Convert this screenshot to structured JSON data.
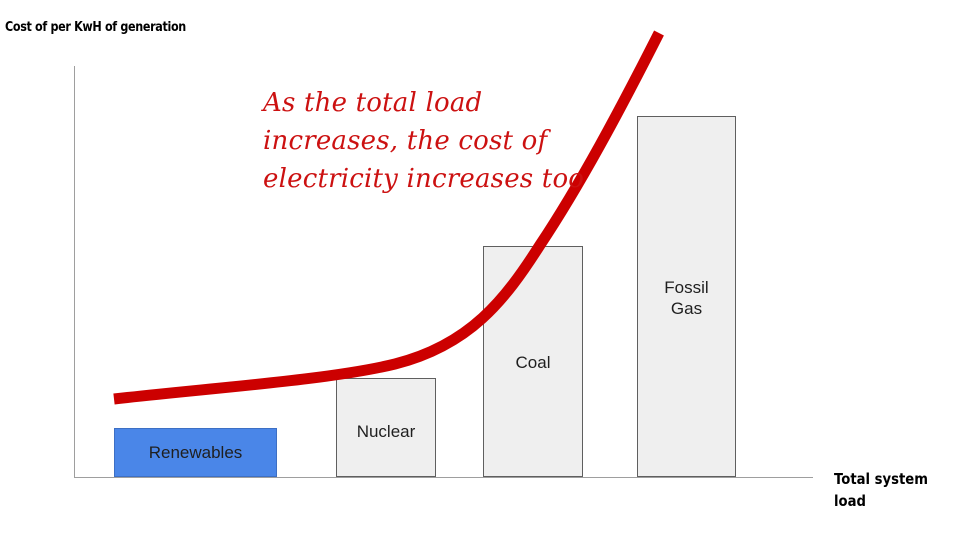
{
  "y_axis_label": "Cost of per KwH of generation",
  "x_axis_label": "Total system load",
  "annotation": "As the total load\nincreases, the cost of\nelectricity increases too",
  "bars": [
    {
      "label": "Renewables",
      "color": "#4a86e8"
    },
    {
      "label": "Nuclear",
      "color": "#efefef"
    },
    {
      "label": "Coal",
      "color": "#efefef"
    },
    {
      "label": "Fossil\nGas",
      "color": "#efefef"
    }
  ],
  "curve_color": "#cc0000"
}
